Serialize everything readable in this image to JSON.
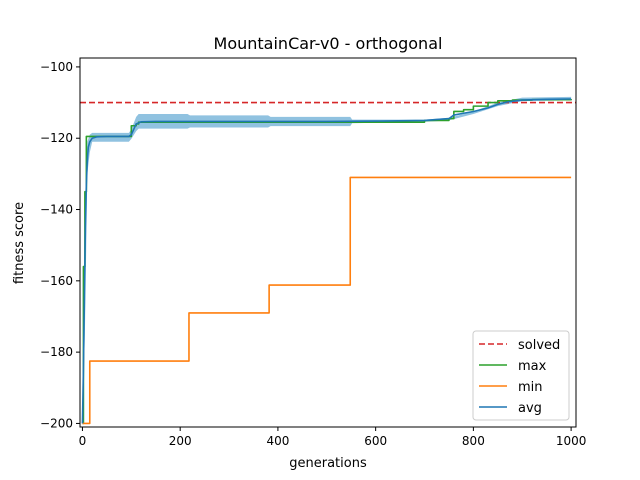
{
  "chart_data": {
    "type": "line",
    "title": "MountainCar-v0 - orthogonal",
    "xlabel": "generations",
    "ylabel": "fitness score",
    "xlim": [
      -5,
      1010
    ],
    "ylim": [
      -201,
      -97.5
    ],
    "xticks": [
      0,
      200,
      400,
      600,
      800,
      1000
    ],
    "yticks": [
      -200,
      -180,
      -160,
      -140,
      -120,
      -100
    ],
    "grid": false,
    "legend_position": "lower-right",
    "solved_threshold": -110,
    "series": [
      {
        "name": "solved",
        "color": "#d62728",
        "style": "dashed",
        "x": [
          -5,
          1010
        ],
        "y": [
          -110,
          -110
        ]
      },
      {
        "name": "max",
        "color": "#2ca02c",
        "style": "step",
        "x": [
          0,
          2,
          4,
          5,
          6,
          8,
          10,
          95,
          100,
          110,
          115,
          700,
          750,
          760,
          780,
          800,
          830,
          850,
          880,
          920,
          1000
        ],
        "y": [
          -200,
          -156,
          -156,
          -135,
          -135,
          -119.5,
          -119.5,
          -119.5,
          -116.5,
          -116,
          -115.5,
          -115,
          -114.5,
          -112.5,
          -112,
          -111,
          -110,
          -109.5,
          -109.3,
          -109.2,
          -109
        ]
      },
      {
        "name": "min",
        "color": "#ff7f0e",
        "style": "step",
        "x": [
          0,
          15,
          218,
          382,
          548,
          1000
        ],
        "y": [
          -200,
          -182.5,
          -169,
          -161.2,
          -131,
          -131
        ]
      },
      {
        "name": "avg",
        "color": "#1f77b4",
        "style": "line",
        "x": [
          0,
          2,
          4,
          6,
          8,
          10,
          12,
          15,
          20,
          30,
          50,
          80,
          95,
          100,
          105,
          110,
          120,
          150,
          200,
          300,
          400,
          500,
          600,
          700,
          750,
          760,
          780,
          800,
          830,
          850,
          870,
          900,
          950,
          1000
        ],
        "y": [
          -200,
          -185,
          -165,
          -145,
          -133,
          -126,
          -122.5,
          -121,
          -120,
          -119.6,
          -119.5,
          -119.5,
          -119.5,
          -119,
          -117.5,
          -116,
          -115.4,
          -115.3,
          -115.3,
          -115.3,
          -115.3,
          -115.3,
          -115.2,
          -115,
          -114.5,
          -113.5,
          -113,
          -112.5,
          -111.5,
          -110.5,
          -109.8,
          -109.3,
          -109.1,
          -109
        ]
      }
    ],
    "avg_band": {
      "color": "#6baed6",
      "x": [
        0,
        5,
        10,
        15,
        20,
        95,
        100,
        110,
        115,
        215,
        220,
        380,
        385,
        548,
        552,
        700,
        750,
        800,
        850,
        900,
        1000
      ],
      "upper": [
        -190,
        -140,
        -121,
        -119,
        -118.5,
        -118.5,
        -117.5,
        -114,
        -113.2,
        -113.2,
        -113.6,
        -113.6,
        -114,
        -114,
        -114.8,
        -114.8,
        -114.3,
        -112.5,
        -110,
        -108.6,
        -108.4
      ],
      "lower": [
        -200,
        -175,
        -130,
        -124,
        -121,
        -121,
        -120.2,
        -118,
        -117.3,
        -117.3,
        -117,
        -117,
        -116.6,
        -116.6,
        -115.8,
        -115.4,
        -115,
        -113.2,
        -111,
        -109.6,
        -109.4
      ]
    }
  }
}
